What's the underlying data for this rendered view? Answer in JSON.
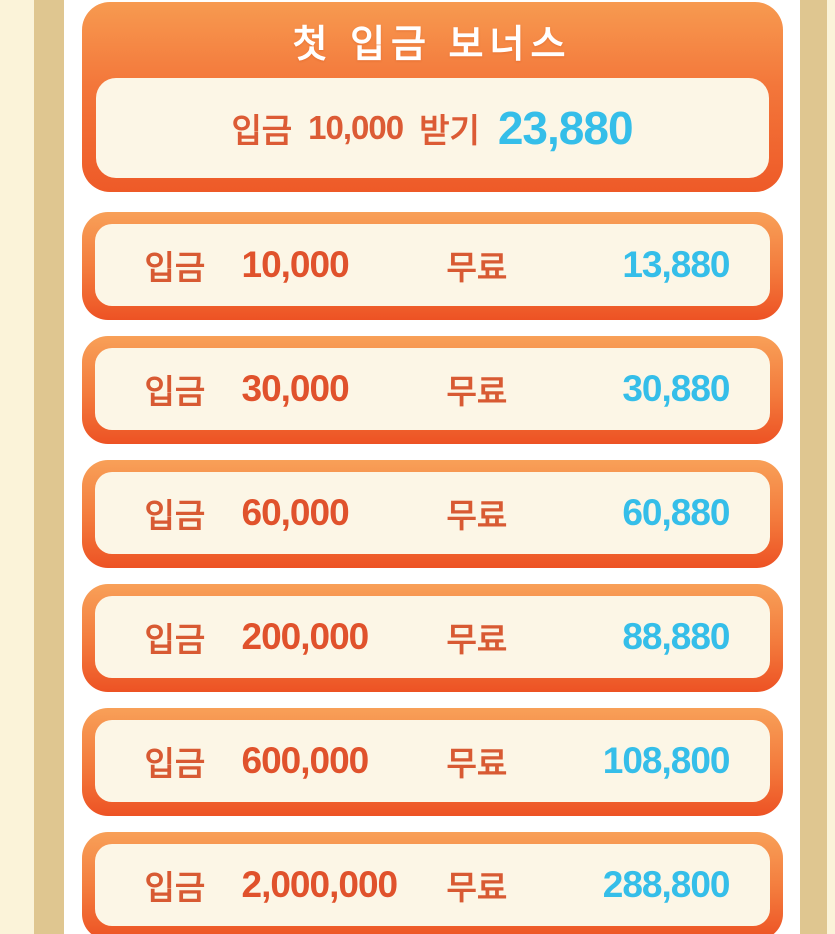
{
  "header": {
    "title": "첫 입금 보너스",
    "offer": {
      "deposit_label": "입금",
      "deposit_amount": "10,000",
      "action_label": "받기",
      "bonus_amount": "23,880"
    }
  },
  "tiers": [
    {
      "deposit_label": "입금",
      "deposit_amount": "10,000",
      "free_label": "무료",
      "bonus_amount": "13,880"
    },
    {
      "deposit_label": "입금",
      "deposit_amount": "30,000",
      "free_label": "무료",
      "bonus_amount": "30,880"
    },
    {
      "deposit_label": "입금",
      "deposit_amount": "60,000",
      "free_label": "무료",
      "bonus_amount": "60,880"
    },
    {
      "deposit_label": "입금",
      "deposit_amount": "200,000",
      "free_label": "무료",
      "bonus_amount": "88,880"
    },
    {
      "deposit_label": "입금",
      "deposit_amount": "600,000",
      "free_label": "무료",
      "bonus_amount": "108,800"
    },
    {
      "deposit_label": "입금",
      "deposit_amount": "2,000,000",
      "free_label": "무료",
      "bonus_amount": "288,800"
    }
  ],
  "colors": {
    "card_border_top": "#F8A058",
    "card_border_bottom": "#ED5224",
    "inner_cream": "#FCF6E6",
    "label_orange": "#D85A33",
    "amount_orange": "#E0522C",
    "bonus_cyan": "#35BEE9",
    "title_white": "#FFFFFF",
    "side_cream": "#FBF3D9",
    "side_tan": "#DFC690"
  }
}
